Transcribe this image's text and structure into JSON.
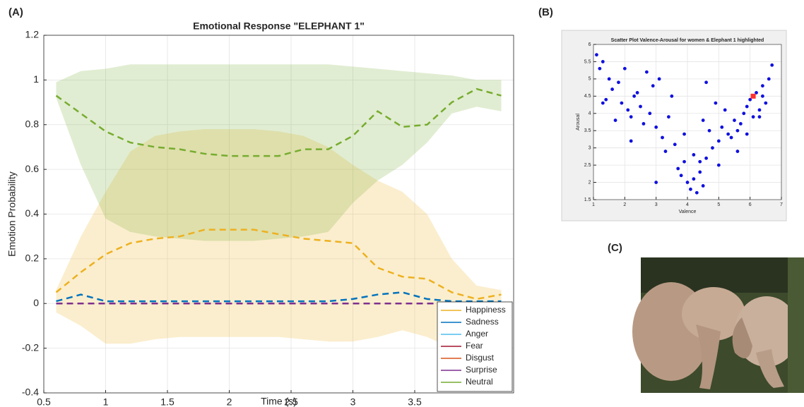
{
  "panel_labels": [
    "(A)",
    "(B)",
    "(C)"
  ],
  "chart_data": [
    {
      "type": "line",
      "title": "Emotional Response \"ELEPHANT 1\"",
      "x_label": "Time (s)",
      "y_label": "Emotion Probability",
      "x": [
        0.6,
        0.8,
        1.0,
        1.2,
        1.4,
        1.6,
        1.8,
        2.0,
        2.2,
        2.4,
        2.6,
        2.8,
        3.0,
        3.2,
        3.4,
        3.6,
        3.8,
        4.0,
        4.2
      ],
      "xlim": [
        0.5,
        4.3
      ],
      "xticks": [
        0.5,
        1,
        1.5,
        2,
        2.5,
        3,
        3.5
      ],
      "ylim": [
        -0.4,
        1.2
      ],
      "yticks": [
        -0.4,
        -0.2,
        0,
        0.2,
        0.4,
        0.6,
        0.8,
        1,
        1.2
      ],
      "grid": true,
      "legend": "lower right",
      "series": [
        {
          "name": "Happiness",
          "color": "#EDB120",
          "values": [
            0.05,
            0.14,
            0.22,
            0.27,
            0.29,
            0.3,
            0.33,
            0.33,
            0.33,
            0.31,
            0.29,
            0.28,
            0.27,
            0.16,
            0.12,
            0.11,
            0.05,
            0.02,
            0.04
          ],
          "upper": [
            0.06,
            0.3,
            0.5,
            0.68,
            0.75,
            0.77,
            0.78,
            0.78,
            0.78,
            0.77,
            0.75,
            0.7,
            0.62,
            0.55,
            0.5,
            0.4,
            0.2,
            0.08,
            0.06
          ],
          "lower": [
            -0.04,
            -0.1,
            -0.18,
            -0.18,
            -0.16,
            -0.15,
            -0.15,
            -0.15,
            -0.15,
            -0.15,
            -0.16,
            -0.17,
            -0.17,
            -0.15,
            -0.12,
            -0.15,
            -0.2,
            -0.1,
            -0.05
          ]
        },
        {
          "name": "Sadness",
          "color": "#0072BD",
          "values": [
            0.01,
            0.04,
            0.01,
            0.01,
            0.01,
            0.01,
            0.01,
            0.01,
            0.01,
            0.01,
            0.01,
            0.01,
            0.02,
            0.04,
            0.05,
            0.02,
            0.01,
            0.01,
            0.01
          ]
        },
        {
          "name": "Anger",
          "color": "#4DBEEE",
          "values": [
            0,
            0,
            0,
            0,
            0,
            0,
            0,
            0,
            0,
            0,
            0,
            0,
            0,
            0,
            0,
            0,
            0,
            0,
            0
          ]
        },
        {
          "name": "Fear",
          "color": "#A2142F",
          "values": [
            0,
            0,
            0,
            0,
            0,
            0,
            0,
            0,
            0,
            0,
            0,
            0,
            0,
            0,
            0,
            0,
            0,
            0,
            0
          ]
        },
        {
          "name": "Disgust",
          "color": "#D95319",
          "values": [
            0,
            0,
            0,
            0,
            0,
            0,
            0,
            0,
            0,
            0,
            0,
            0,
            0,
            0,
            0,
            0,
            0,
            0,
            0
          ]
        },
        {
          "name": "Surprise",
          "color": "#7E2F8E",
          "values": [
            0,
            0,
            0,
            0,
            0,
            0,
            0,
            0,
            0,
            0,
            0,
            0,
            0,
            0,
            0,
            0,
            0,
            0,
            0
          ]
        },
        {
          "name": "Neutral",
          "color": "#77AC30",
          "values": [
            0.93,
            0.85,
            0.77,
            0.72,
            0.7,
            0.69,
            0.67,
            0.66,
            0.66,
            0.66,
            0.69,
            0.69,
            0.75,
            0.86,
            0.79,
            0.8,
            0.9,
            0.96,
            0.93
          ],
          "upper": [
            0.99,
            1.04,
            1.05,
            1.07,
            1.07,
            1.07,
            1.07,
            1.07,
            1.07,
            1.07,
            1.07,
            1.07,
            1.06,
            1.05,
            1.04,
            1.03,
            1.02,
            1.0,
            1.0
          ],
          "lower": [
            0.92,
            0.62,
            0.38,
            0.32,
            0.3,
            0.29,
            0.28,
            0.28,
            0.28,
            0.29,
            0.3,
            0.32,
            0.45,
            0.55,
            0.62,
            0.72,
            0.85,
            0.88,
            0.86
          ]
        }
      ]
    },
    {
      "type": "scatter",
      "title": "Scatter Plot Valence-Arousal for women & Elephant 1 highlighted",
      "x_label": "Valence",
      "y_label": "Arousal",
      "xlim": [
        1,
        7
      ],
      "xticks": [
        1,
        2,
        3,
        4,
        5,
        6,
        7
      ],
      "ylim": [
        1.5,
        6
      ],
      "yticks": [
        1.5,
        2,
        2.5,
        3,
        3.5,
        4,
        4.5,
        5,
        5.5,
        6
      ],
      "grid": true,
      "series": [
        {
          "color": "#1010e0",
          "x": [
            1.1,
            1.2,
            1.3,
            1.5,
            1.6,
            1.4,
            1.8,
            1.9,
            2.1,
            2.3,
            2.2,
            2.5,
            2.6,
            2.8,
            3.0,
            2.9,
            3.2,
            3.4,
            3.3,
            3.6,
            3.7,
            3.9,
            3.8,
            4.0,
            4.1,
            4.2,
            4.3,
            4.4,
            4.5,
            4.2,
            4.6,
            4.8,
            4.7,
            5.0,
            5.1,
            5.3,
            5.2,
            5.5,
            5.6,
            5.8,
            5.7,
            5.9,
            6.0,
            6.2,
            6.3,
            6.4,
            6.5,
            6.6,
            6.7,
            6.3,
            5.4,
            4.9,
            4.5,
            3.5,
            3.1,
            2.7,
            2.4,
            2.0,
            1.7,
            1.3,
            5.6,
            5.0,
            4.4,
            3.9,
            6.1,
            2.2,
            3.0,
            4.6,
            5.9,
            6.4
          ],
          "values": [
            5.7,
            5.3,
            5.5,
            5.0,
            4.7,
            4.4,
            4.9,
            4.3,
            4.1,
            4.5,
            3.9,
            4.2,
            3.7,
            4.0,
            3.6,
            4.8,
            3.3,
            3.9,
            2.9,
            3.1,
            2.4,
            2.6,
            2.2,
            2.0,
            1.8,
            2.1,
            1.7,
            2.3,
            1.9,
            2.8,
            2.7,
            3.0,
            3.5,
            3.2,
            3.6,
            3.4,
            4.1,
            3.8,
            3.5,
            4.0,
            3.7,
            4.2,
            4.4,
            4.6,
            4.1,
            4.8,
            4.3,
            5.0,
            5.4,
            3.9,
            3.3,
            4.3,
            3.8,
            4.5,
            5.0,
            5.2,
            4.6,
            5.3,
            3.8,
            4.3,
            2.9,
            2.5,
            2.6,
            3.4,
            3.9,
            3.2,
            2.0,
            4.9,
            3.4,
            4.5
          ]
        },
        {
          "color": "#ff3030",
          "x": [
            6.1
          ],
          "values": [
            4.5
          ]
        }
      ]
    }
  ]
}
